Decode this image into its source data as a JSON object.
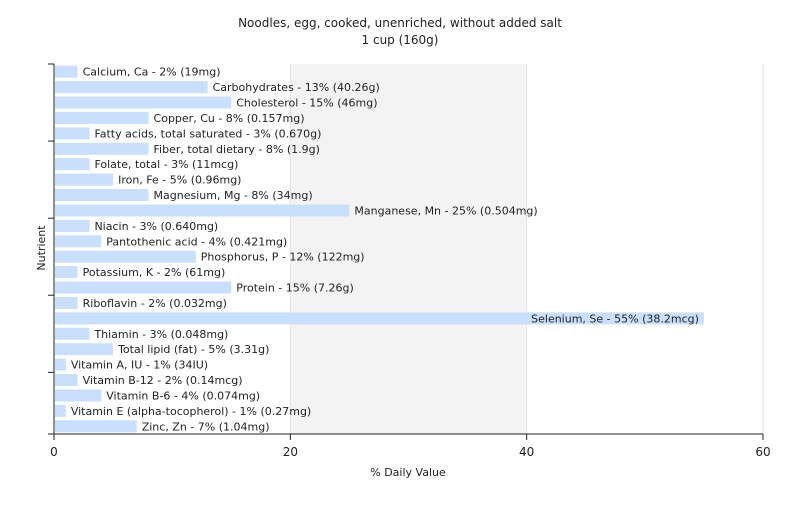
{
  "chart_data": {
    "type": "bar",
    "orientation": "horizontal",
    "title": "Noodles, egg, cooked, unenriched, without added salt",
    "subtitle": "1 cup (160g)",
    "xlabel": "% Daily Value",
    "ylabel": "Nutrient",
    "xlim": [
      0,
      60
    ],
    "xticks": [
      0,
      20,
      40,
      60
    ],
    "grid": true,
    "legend": "none",
    "bar_color": "#c9dffb",
    "background_bands": [
      "#ffffff",
      "#f3f3f3"
    ],
    "categories": [
      "Calcium, Ca",
      "Carbohydrates",
      "Cholesterol",
      "Copper, Cu",
      "Fatty acids, total saturated",
      "Fiber, total dietary",
      "Folate, total",
      "Iron, Fe",
      "Magnesium, Mg",
      "Manganese, Mn",
      "Niacin",
      "Pantothenic acid",
      "Phosphorus, P",
      "Potassium, K",
      "Protein",
      "Riboflavin",
      "Selenium, Se",
      "Thiamin",
      "Total lipid (fat)",
      "Vitamin A, IU",
      "Vitamin B-12",
      "Vitamin B-6",
      "Vitamin E (alpha-tocopherol)",
      "Zinc, Zn"
    ],
    "values": [
      2,
      13,
      15,
      8,
      3,
      8,
      3,
      5,
      8,
      25,
      3,
      4,
      12,
      2,
      15,
      2,
      55,
      3,
      5,
      1,
      2,
      4,
      1,
      7
    ],
    "labels": [
      "Calcium, Ca - 2% (19mg)",
      "Carbohydrates - 13% (40.26g)",
      "Cholesterol - 15% (46mg)",
      "Copper, Cu - 8% (0.157mg)",
      "Fatty acids, total saturated - 3% (0.670g)",
      "Fiber, total dietary - 8% (1.9g)",
      "Folate, total - 3% (11mcg)",
      "Iron, Fe - 5% (0.96mg)",
      "Magnesium, Mg - 8% (34mg)",
      "Manganese, Mn - 25% (0.504mg)",
      "Niacin - 3% (0.640mg)",
      "Pantothenic acid - 4% (0.421mg)",
      "Phosphorus, P - 12% (122mg)",
      "Potassium, K - 2% (61mg)",
      "Protein - 15% (7.26g)",
      "Riboflavin - 2% (0.032mg)",
      "Selenium, Se - 55% (38.2mcg)",
      "Thiamin - 3% (0.048mg)",
      "Total lipid (fat) - 5% (3.31g)",
      "Vitamin A, IU - 1% (34IU)",
      "Vitamin B-12 - 2% (0.14mcg)",
      "Vitamin B-6 - 4% (0.074mg)",
      "Vitamin E (alpha-tocopherol) - 1% (0.27mg)",
      "Zinc, Zn - 7% (1.04mg)"
    ]
  }
}
